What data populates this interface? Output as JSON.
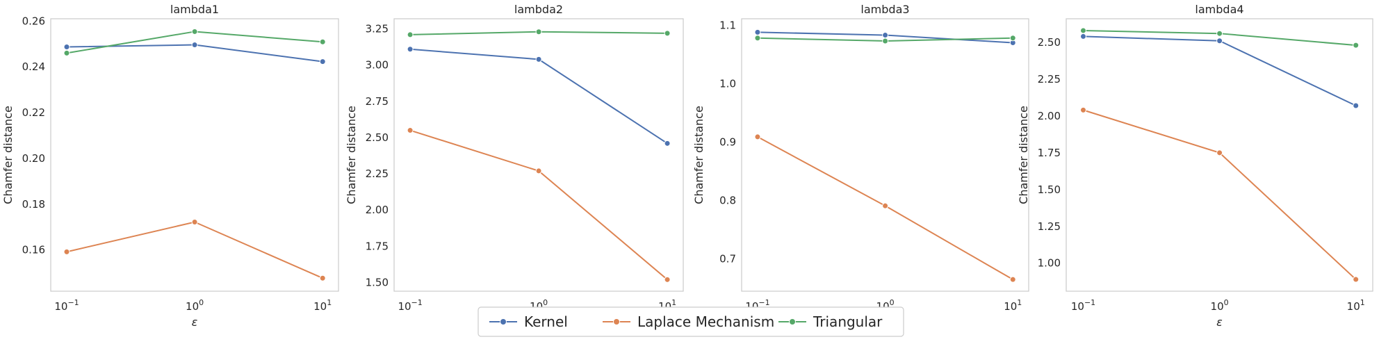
{
  "figure": {
    "legend": {
      "placement": "bottom-center",
      "entries": [
        "Kernel",
        "Laplace Mechanism",
        "Triangular"
      ]
    }
  },
  "colors": {
    "Kernel": "#4c72b0",
    "Laplace Mechanism": "#dd8452",
    "Triangular": "#55a868",
    "grid": "#dddddd",
    "frame": "#cccccc"
  },
  "chart_data": [
    {
      "type": "line",
      "title": "lambda1",
      "xlabel": "ε",
      "ylabel": "Chamfer distance",
      "xscale": "log",
      "x": [
        0.1,
        1,
        10
      ],
      "xlim": [
        0.075,
        13.3
      ],
      "ylim": [
        0.142,
        0.261
      ],
      "yticks": [
        0.16,
        0.18,
        0.2,
        0.22,
        0.24,
        0.26
      ],
      "ytick_labels": [
        "0.16",
        "0.18",
        "0.20",
        "0.22",
        "0.24",
        "0.26"
      ],
      "grid": true,
      "series": [
        {
          "name": "Kernel",
          "values": [
            0.2487,
            0.2496,
            0.2423
          ]
        },
        {
          "name": "Laplace Mechanism",
          "values": [
            0.1592,
            0.1722,
            0.1477
          ]
        },
        {
          "name": "Triangular",
          "values": [
            0.246,
            0.2554,
            0.2509
          ]
        }
      ]
    },
    {
      "type": "line",
      "title": "lambda2",
      "xlabel": "",
      "ylabel": "Chamfer distance",
      "xscale": "log",
      "x": [
        0.1,
        1,
        10
      ],
      "xlim": [
        0.075,
        13.3
      ],
      "ylim": [
        1.44,
        3.32
      ],
      "yticks": [
        1.5,
        1.75,
        2.0,
        2.25,
        2.5,
        2.75,
        3.0,
        3.25
      ],
      "ytick_labels": [
        "1.50",
        "1.75",
        "2.00",
        "2.25",
        "2.50",
        "2.75",
        "3.00",
        "3.25"
      ],
      "grid": true,
      "series": [
        {
          "name": "Kernel",
          "values": [
            3.11,
            3.04,
            2.46
          ]
        },
        {
          "name": "Laplace Mechanism",
          "values": [
            2.55,
            2.27,
            1.52
          ]
        },
        {
          "name": "Triangular",
          "values": [
            3.21,
            3.23,
            3.22
          ]
        }
      ]
    },
    {
      "type": "line",
      "title": "lambda3",
      "xlabel": "",
      "ylabel": "Chamfer distance",
      "xscale": "log",
      "x": [
        0.1,
        1,
        10
      ],
      "xlim": [
        0.075,
        13.3
      ],
      "ylim": [
        0.645,
        1.111
      ],
      "yticks": [
        0.7,
        0.8,
        0.9,
        1.0,
        1.1
      ],
      "ytick_labels": [
        "0.7",
        "0.8",
        "0.9",
        "1.0",
        "1.1"
      ],
      "grid": true,
      "series": [
        {
          "name": "Kernel",
          "values": [
            1.088,
            1.083,
            1.07
          ]
        },
        {
          "name": "Laplace Mechanism",
          "values": [
            0.909,
            0.791,
            0.665
          ]
        },
        {
          "name": "Triangular",
          "values": [
            1.078,
            1.073,
            1.078
          ]
        }
      ]
    },
    {
      "type": "line",
      "title": "lambda4",
      "xlabel": "ε",
      "ylabel": "Chamfer distance",
      "xscale": "log",
      "x": [
        0.1,
        1,
        10
      ],
      "xlim": [
        0.075,
        13.3
      ],
      "ylim": [
        0.81,
        2.66
      ],
      "yticks": [
        1.0,
        1.25,
        1.5,
        1.75,
        2.0,
        2.25,
        2.5
      ],
      "ytick_labels": [
        "1.00",
        "1.25",
        "1.50",
        "1.75",
        "2.00",
        "2.25",
        "2.50"
      ],
      "grid": true,
      "series": [
        {
          "name": "Kernel",
          "values": [
            2.54,
            2.51,
            2.07
          ]
        },
        {
          "name": "Laplace Mechanism",
          "values": [
            2.04,
            1.75,
            0.89
          ]
        },
        {
          "name": "Triangular",
          "values": [
            2.58,
            2.56,
            2.48
          ]
        }
      ]
    }
  ]
}
